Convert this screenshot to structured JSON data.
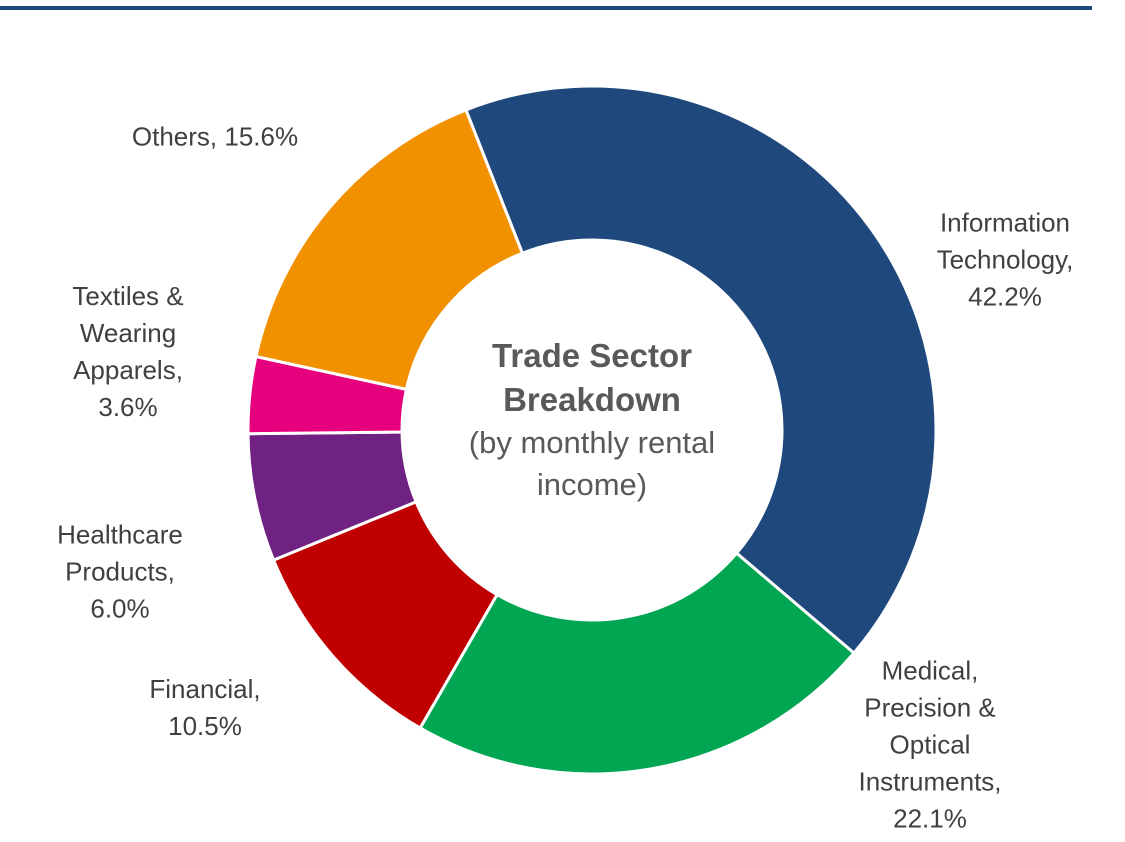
{
  "chart_data": {
    "type": "donut",
    "title": "Trade Sector Breakdown",
    "subtitle": "(by monthly rental income)",
    "categories": [
      "Information Technology,",
      "Medical, Precision & Optical Instruments,",
      "Financial,",
      "Healthcare Products,",
      "Textiles & Wearing Apparels,",
      "Others,"
    ],
    "values": [
      42.2,
      22.1,
      10.5,
      6.0,
      3.6,
      15.6
    ],
    "value_labels": [
      "42.2%",
      "22.1%",
      "10.5%",
      "6.0%",
      "3.6%",
      "15.6%"
    ],
    "colors": [
      "#1f497d",
      "#00a651",
      "#c00000",
      "#6f2282",
      "#e6007e",
      "#f29100"
    ]
  }
}
